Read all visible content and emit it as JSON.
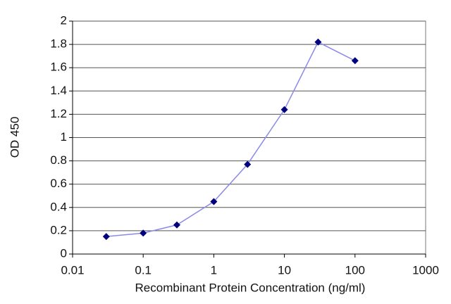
{
  "chart_data": {
    "type": "line",
    "x_label": "Recombinant Protein Concentration (ng/ml)",
    "y_label": "OD 450",
    "xscale": "log",
    "x": [
      0.03,
      0.1,
      0.3,
      1,
      3,
      10,
      30,
      100
    ],
    "series": [
      {
        "values": [
          0.15,
          0.18,
          0.25,
          0.45,
          0.77,
          1.24,
          1.82,
          1.66
        ],
        "color": "#00007f",
        "line_color": "#8a8ae8"
      }
    ],
    "xlim": [
      0.01,
      1000
    ],
    "xticks": [
      0.01,
      0.1,
      1,
      10,
      100,
      1000
    ],
    "ylim": [
      0,
      2
    ],
    "yticks": [
      0,
      0.2,
      0.4,
      0.6,
      0.8,
      1,
      1.2,
      1.4,
      1.6,
      1.8,
      2
    ],
    "grid": true
  }
}
